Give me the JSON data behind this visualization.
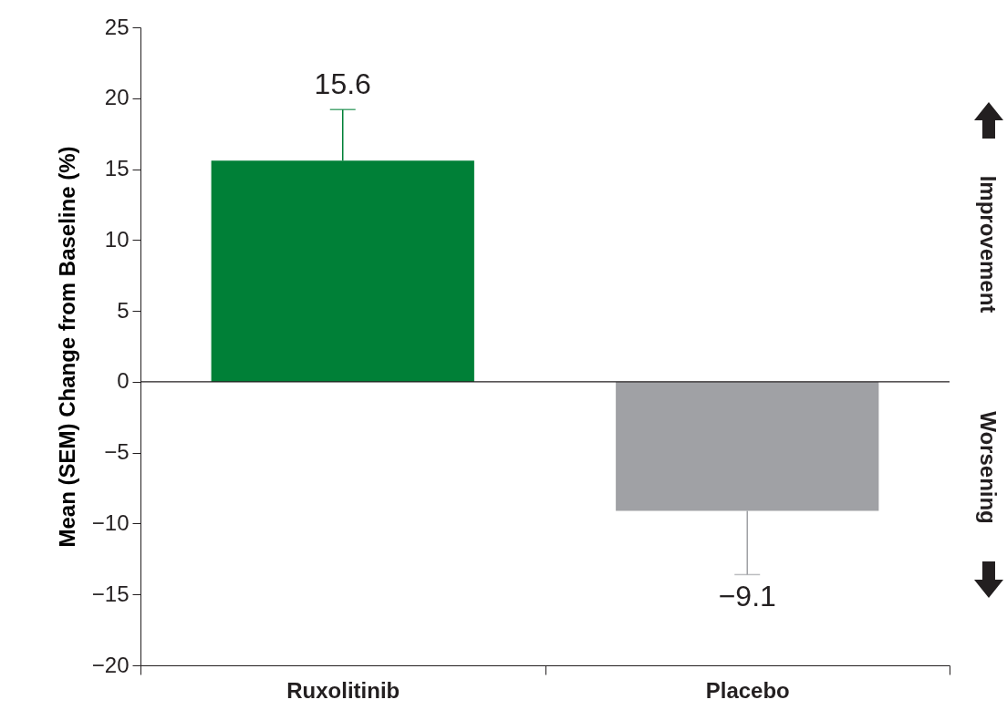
{
  "chart_data": {
    "type": "bar",
    "ylabel": "Mean (SEM) Change from Baseline (%)",
    "categories": [
      "Ruxolitinib",
      "Placebo"
    ],
    "values": [
      15.6,
      -9.1
    ],
    "colors": [
      "#008037",
      "#a0a1a5"
    ],
    "errors": [
      [
        15.6,
        19.2
      ],
      [
        -13.6,
        -9.1
      ]
    ],
    "data_labels": true,
    "ylim": [
      -20,
      25
    ],
    "yticks": [
      -20,
      -15,
      -10,
      -5,
      0,
      5,
      10,
      15,
      20,
      25
    ],
    "grid": false,
    "ref_lines": [
      {
        "axis": "y",
        "value": 0,
        "label": null
      }
    ],
    "annotations": [
      "Improvement",
      "Worsening"
    ]
  }
}
